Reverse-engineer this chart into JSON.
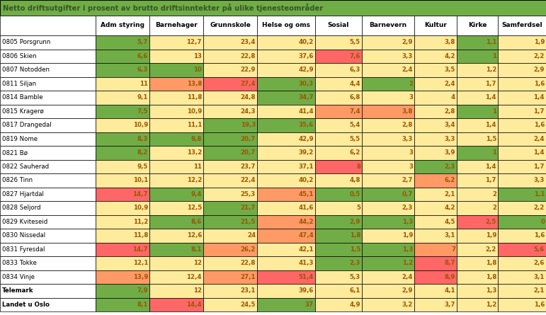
{
  "title": "Netto driftsutgifter i prosent av brutto driftsinntekter på ulike tjenesteområder",
  "columns": [
    "Adm styring",
    "Barnehager",
    "Grunnskole",
    "Helse og oms",
    "Sosial",
    "Barnevern",
    "Kultur",
    "Kirke",
    "Samferdsel"
  ],
  "rows": [
    "0805 Porsgrunn",
    "0806 Skien",
    "0807 Notodden",
    "0811 Siljan",
    "0814 Bamble",
    "0815 Kragerø",
    "0817 Drangedal",
    "0819 Nome",
    "0821 Bø",
    "0822 Sauherad",
    "0826 Tinn",
    "0827 Hjartdal",
    "0828 Seljord",
    "0829 Kviteseid",
    "0830 Nissedal",
    "0831 Fyresdal",
    "0833 Tokke",
    "0834 Vinje",
    "Telemark",
    "Landet u Oslo"
  ],
  "values": [
    [
      5.7,
      12.7,
      23.4,
      40.2,
      5.5,
      2.9,
      3.8,
      1.1,
      1.9
    ],
    [
      6.6,
      13.0,
      22.8,
      37.6,
      7.6,
      3.3,
      4.2,
      1.0,
      2.2
    ],
    [
      6.3,
      10.0,
      22.9,
      42.9,
      6.3,
      2.4,
      3.5,
      1.2,
      2.9
    ],
    [
      11.0,
      13.8,
      27.4,
      30.3,
      4.4,
      2.0,
      2.4,
      1.7,
      1.6
    ],
    [
      9.1,
      11.8,
      24.8,
      34.7,
      6.8,
      3.0,
      4.0,
      1.4,
      1.4
    ],
    [
      7.5,
      10.9,
      24.3,
      41.4,
      7.4,
      3.8,
      2.8,
      1.0,
      1.7
    ],
    [
      10.9,
      11.1,
      19.3,
      35.6,
      5.4,
      2.8,
      3.4,
      1.4,
      1.6
    ],
    [
      8.3,
      9.8,
      20.7,
      42.9,
      5.5,
      3.3,
      3.3,
      1.5,
      2.4
    ],
    [
      8.2,
      13.2,
      20.7,
      39.2,
      6.2,
      3.0,
      3.9,
      1.0,
      1.4
    ],
    [
      9.5,
      11.0,
      23.7,
      37.1,
      8.0,
      3.0,
      2.3,
      1.4,
      1.7
    ],
    [
      10.1,
      12.2,
      22.4,
      40.2,
      4.8,
      2.7,
      6.2,
      1.7,
      3.3
    ],
    [
      14.7,
      9.4,
      25.3,
      45.1,
      0.5,
      0.7,
      2.1,
      2.0,
      1.1
    ],
    [
      10.9,
      12.5,
      21.7,
      41.6,
      5.0,
      2.3,
      4.2,
      2.0,
      2.2
    ],
    [
      11.2,
      8.6,
      21.5,
      44.2,
      2.9,
      1.3,
      4.5,
      2.5,
      0.0
    ],
    [
      11.8,
      12.6,
      24.0,
      47.4,
      1.8,
      1.9,
      3.1,
      1.9,
      1.6
    ],
    [
      14.7,
      8.1,
      26.2,
      42.1,
      1.5,
      1.3,
      7.0,
      2.2,
      5.6
    ],
    [
      12.1,
      12.0,
      22.8,
      41.3,
      2.3,
      1.2,
      8.7,
      1.8,
      2.6
    ],
    [
      13.9,
      12.4,
      27.1,
      51.4,
      5.3,
      2.4,
      8.9,
      1.8,
      3.1
    ],
    [
      7.9,
      12.0,
      23.1,
      39.6,
      6.1,
      2.9,
      4.1,
      1.3,
      2.1
    ],
    [
      8.1,
      14.4,
      24.5,
      37.0,
      4.9,
      3.2,
      3.7,
      1.2,
      1.6
    ]
  ],
  "colors": [
    [
      "#70AD47",
      "#FFEB9C",
      "#FFEB9C",
      "#FFEB9C",
      "#FFEB9C",
      "#FFEB9C",
      "#FFEB9C",
      "#70AD47",
      "#FFEB9C"
    ],
    [
      "#70AD47",
      "#FFEB9C",
      "#FFEB9C",
      "#FFEB9C",
      "#FF6666",
      "#FFEB9C",
      "#FFEB9C",
      "#70AD47",
      "#FFEB9C"
    ],
    [
      "#70AD47",
      "#70AD47",
      "#FFEB9C",
      "#FFEB9C",
      "#FFEB9C",
      "#FFEB9C",
      "#FFEB9C",
      "#FFEB9C",
      "#FFEB9C"
    ],
    [
      "#FFEB9C",
      "#FF9966",
      "#FF6666",
      "#70AD47",
      "#FFEB9C",
      "#70AD47",
      "#FFEB9C",
      "#FFEB9C",
      "#FFEB9C"
    ],
    [
      "#FFEB9C",
      "#FFEB9C",
      "#FFEB9C",
      "#70AD47",
      "#FFEB9C",
      "#FFEB9C",
      "#FFEB9C",
      "#FFEB9C",
      "#FFEB9C"
    ],
    [
      "#70AD47",
      "#FFEB9C",
      "#FFEB9C",
      "#FFEB9C",
      "#FF9966",
      "#FF9966",
      "#FFEB9C",
      "#70AD47",
      "#FFEB9C"
    ],
    [
      "#FFEB9C",
      "#FFEB9C",
      "#70AD47",
      "#70AD47",
      "#FFEB9C",
      "#FFEB9C",
      "#FFEB9C",
      "#FFEB9C",
      "#FFEB9C"
    ],
    [
      "#70AD47",
      "#70AD47",
      "#70AD47",
      "#FFEB9C",
      "#FFEB9C",
      "#FFEB9C",
      "#FFEB9C",
      "#FFEB9C",
      "#FFEB9C"
    ],
    [
      "#70AD47",
      "#FFEB9C",
      "#70AD47",
      "#FFEB9C",
      "#FFEB9C",
      "#FFEB9C",
      "#FFEB9C",
      "#70AD47",
      "#FFEB9C"
    ],
    [
      "#FFEB9C",
      "#FFEB9C",
      "#FFEB9C",
      "#FFEB9C",
      "#FF6666",
      "#FFEB9C",
      "#70AD47",
      "#FFEB9C",
      "#FFEB9C"
    ],
    [
      "#FFEB9C",
      "#FFEB9C",
      "#FFEB9C",
      "#FFEB9C",
      "#FFEB9C",
      "#FFEB9C",
      "#FF9966",
      "#FFEB9C",
      "#FFEB9C"
    ],
    [
      "#FF6666",
      "#70AD47",
      "#FFEB9C",
      "#FF9966",
      "#70AD47",
      "#70AD47",
      "#FFEB9C",
      "#FFEB9C",
      "#70AD47"
    ],
    [
      "#FFEB9C",
      "#FFEB9C",
      "#70AD47",
      "#FFEB9C",
      "#FFEB9C",
      "#FFEB9C",
      "#FFEB9C",
      "#FFEB9C",
      "#FFEB9C"
    ],
    [
      "#FFEB9C",
      "#70AD47",
      "#70AD47",
      "#FF9966",
      "#70AD47",
      "#70AD47",
      "#FFEB9C",
      "#FF6666",
      "#70AD47"
    ],
    [
      "#FFEB9C",
      "#FFEB9C",
      "#FFEB9C",
      "#FF9966",
      "#70AD47",
      "#FFEB9C",
      "#FFEB9C",
      "#FFEB9C",
      "#FFEB9C"
    ],
    [
      "#FF6666",
      "#70AD47",
      "#FF9966",
      "#FFEB9C",
      "#70AD47",
      "#70AD47",
      "#FF9966",
      "#FFEB9C",
      "#FF6666"
    ],
    [
      "#FFEB9C",
      "#FFEB9C",
      "#FFEB9C",
      "#FFEB9C",
      "#70AD47",
      "#70AD47",
      "#FF6666",
      "#FFEB9C",
      "#FFEB9C"
    ],
    [
      "#FF9966",
      "#FFEB9C",
      "#FF9966",
      "#FF6666",
      "#FFEB9C",
      "#FFEB9C",
      "#FF6666",
      "#FFEB9C",
      "#FFEB9C"
    ],
    [
      "#70AD47",
      "#FFEB9C",
      "#FFEB9C",
      "#FFEB9C",
      "#FFEB9C",
      "#FFEB9C",
      "#FFEB9C",
      "#FFEB9C",
      "#FFEB9C"
    ],
    [
      "#70AD47",
      "#FF6666",
      "#FFEB9C",
      "#70AD47",
      "#FFEB9C",
      "#FFEB9C",
      "#FFEB9C",
      "#FFEB9C",
      "#FFEB9C"
    ]
  ],
  "border_color": "#000000",
  "text_color": "#9C5700",
  "title_text_color": "#375623",
  "header_text_color": "#000000",
  "row_label_bold": [
    "Telemark",
    "Landet u Oslo"
  ],
  "fig_width": 7.71,
  "fig_height": 4.45,
  "dpi": 100
}
